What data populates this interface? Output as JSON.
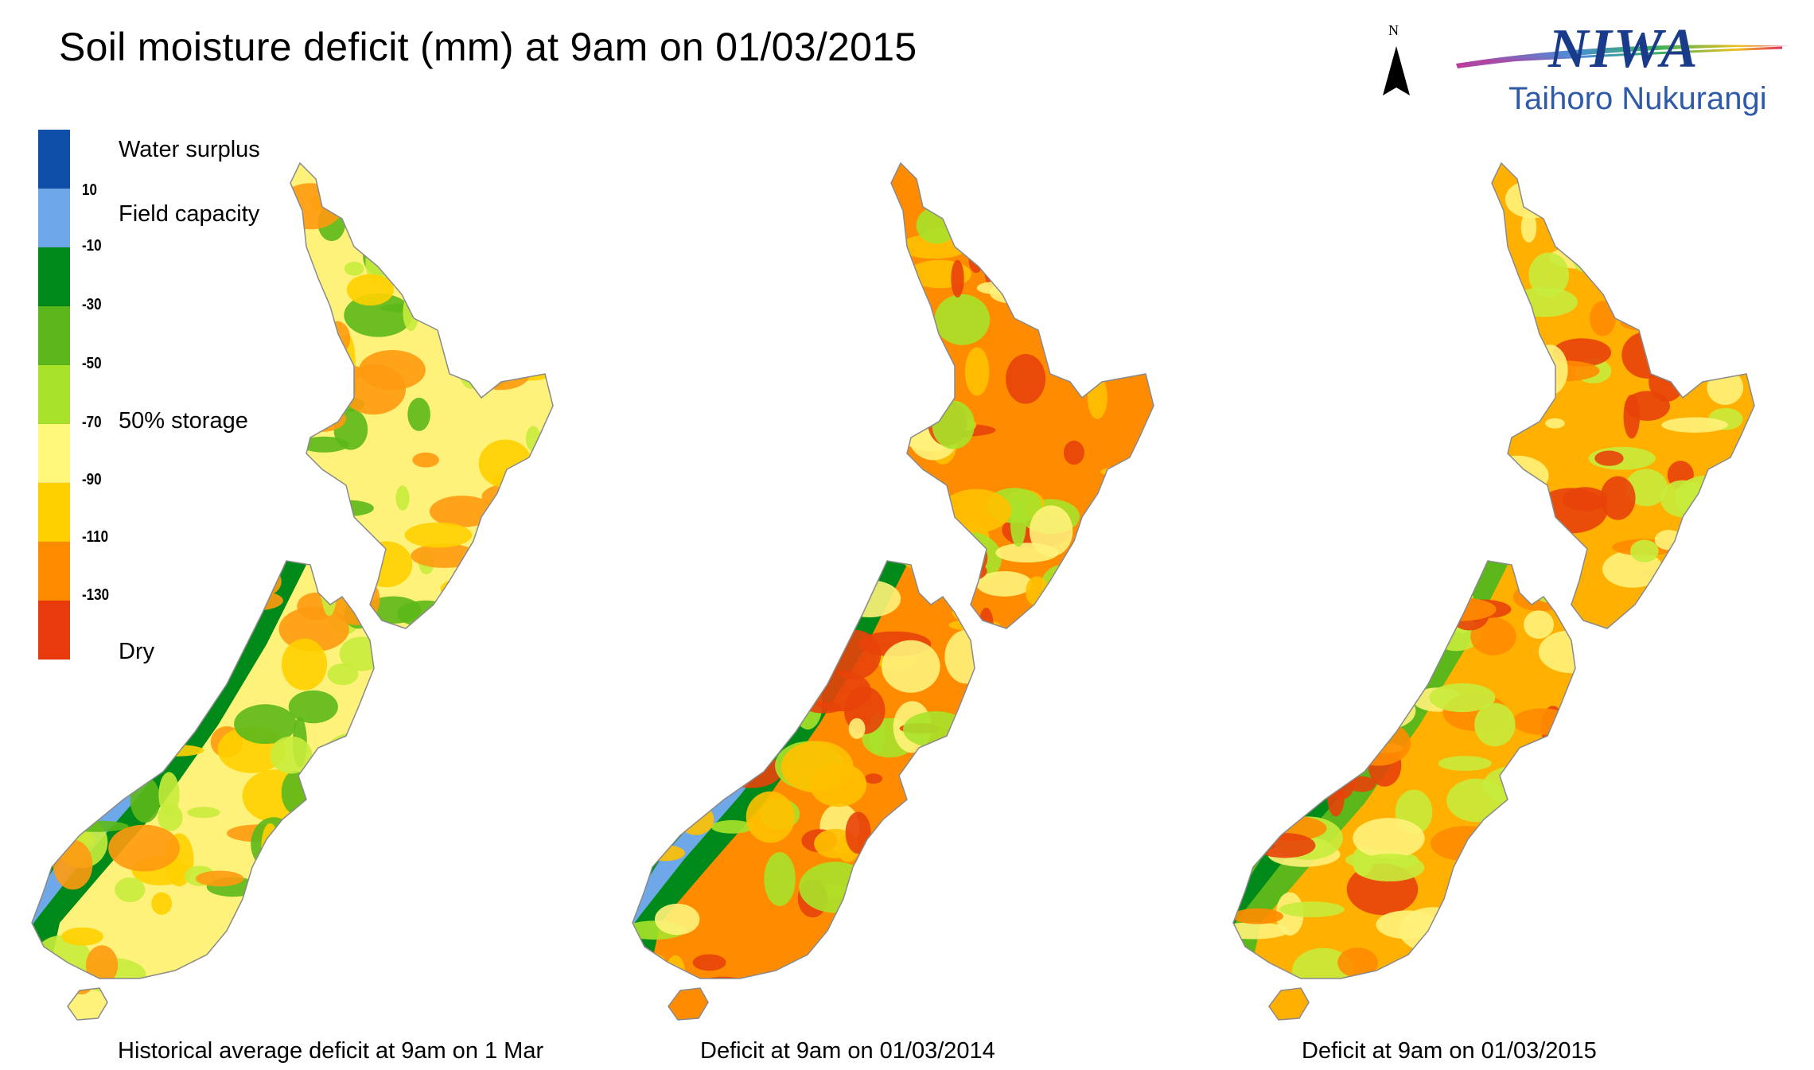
{
  "title": "Soil moisture deficit (mm) at  9am on 01/03/2015",
  "north_label": "N",
  "logo": {
    "name": "NIWA",
    "subtitle": "Taihoro Nukurangi"
  },
  "legend": {
    "colors": [
      "#0f4ea8",
      "#6fa8e8",
      "#008a1a",
      "#5cb81a",
      "#a8e22a",
      "#fff87a",
      "#ffd000",
      "#ff8c00",
      "#e83a0a"
    ],
    "ticks": [
      "10",
      "-10",
      "-30",
      "-50",
      "-70",
      "-90",
      "-110",
      "-130"
    ],
    "labels": {
      "water_surplus": "Water surplus",
      "field_capacity": "Field capacity",
      "storage": "50% storage",
      "dry": "Dry"
    }
  },
  "maps": [
    {
      "caption": "Historical average deficit at  9am on 1 Mar",
      "palette": [
        "#fff27a",
        "#c8ec3c",
        "#ffd000",
        "#5cb81a",
        "#ff9a10",
        "#008a1a",
        "#6fa8e8"
      ]
    },
    {
      "caption": "Deficit at  9am on 01/03/2014",
      "palette": [
        "#ff8c00",
        "#e8420a",
        "#ffc000",
        "#fff27a",
        "#a8e22a",
        "#008a1a",
        "#6fa8e8"
      ]
    },
    {
      "caption": "Deficit at  9am on 01/03/2015",
      "palette": [
        "#ffb000",
        "#ff8c00",
        "#e8420a",
        "#fff27a",
        "#c8ec3c",
        "#5cb81a",
        "#008a1a"
      ]
    }
  ]
}
